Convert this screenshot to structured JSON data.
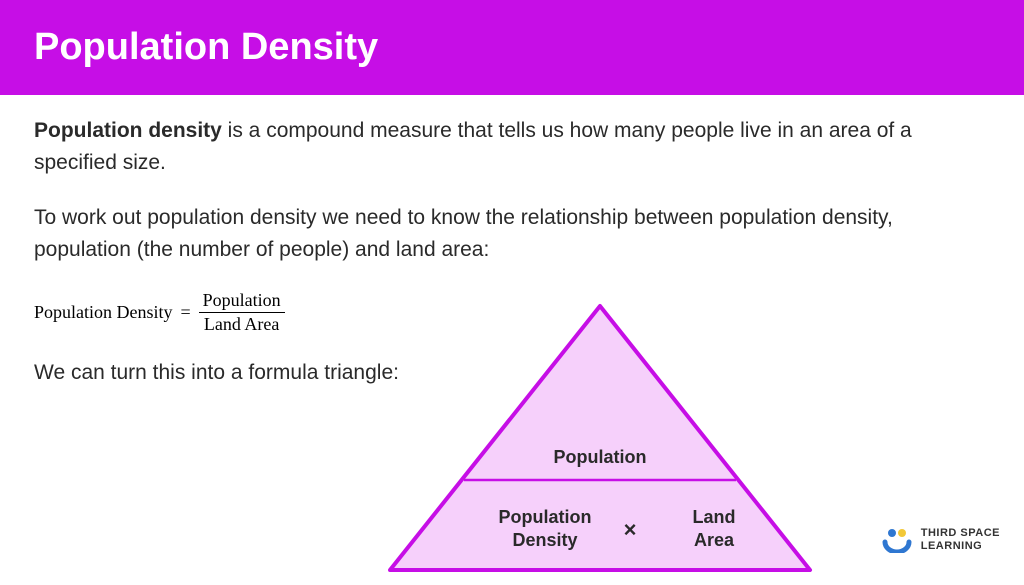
{
  "header": {
    "title": "Population Density",
    "background_color": "#c60ee6",
    "text_color": "#ffffff",
    "title_fontsize": 38
  },
  "body": {
    "text_color": "#2a2a2a",
    "fontsize": 21,
    "bold_term": "Population density",
    "para1_rest": " is a compound measure that tells us how many people live in an area of a specified size.",
    "para2": "To work out population density we need to know the relationship between population density, population (the number of people) and land area:",
    "para3": "We can turn this into a formula triangle:"
  },
  "formula": {
    "lhs": "Population Density",
    "eq": "=",
    "numerator": "Population",
    "denominator": "Land Area",
    "font": "serif",
    "fontsize": 18
  },
  "triangle": {
    "type": "infographic",
    "outline_color": "#c60ee6",
    "fill_color": "#f6d0fb",
    "stroke_width": 4,
    "top_label": "Population",
    "bottom_left_label": "Population\nDensity",
    "bottom_right_label": "Land\nArea",
    "operator": "×",
    "label_fontsize": 18,
    "label_weight": 700
  },
  "brand": {
    "line1": "THIRD SPACE",
    "line2": "LEARNING",
    "dot_color_1": "#2f77d1",
    "dot_color_2": "#f2c838",
    "arc_color": "#2f77d1"
  }
}
